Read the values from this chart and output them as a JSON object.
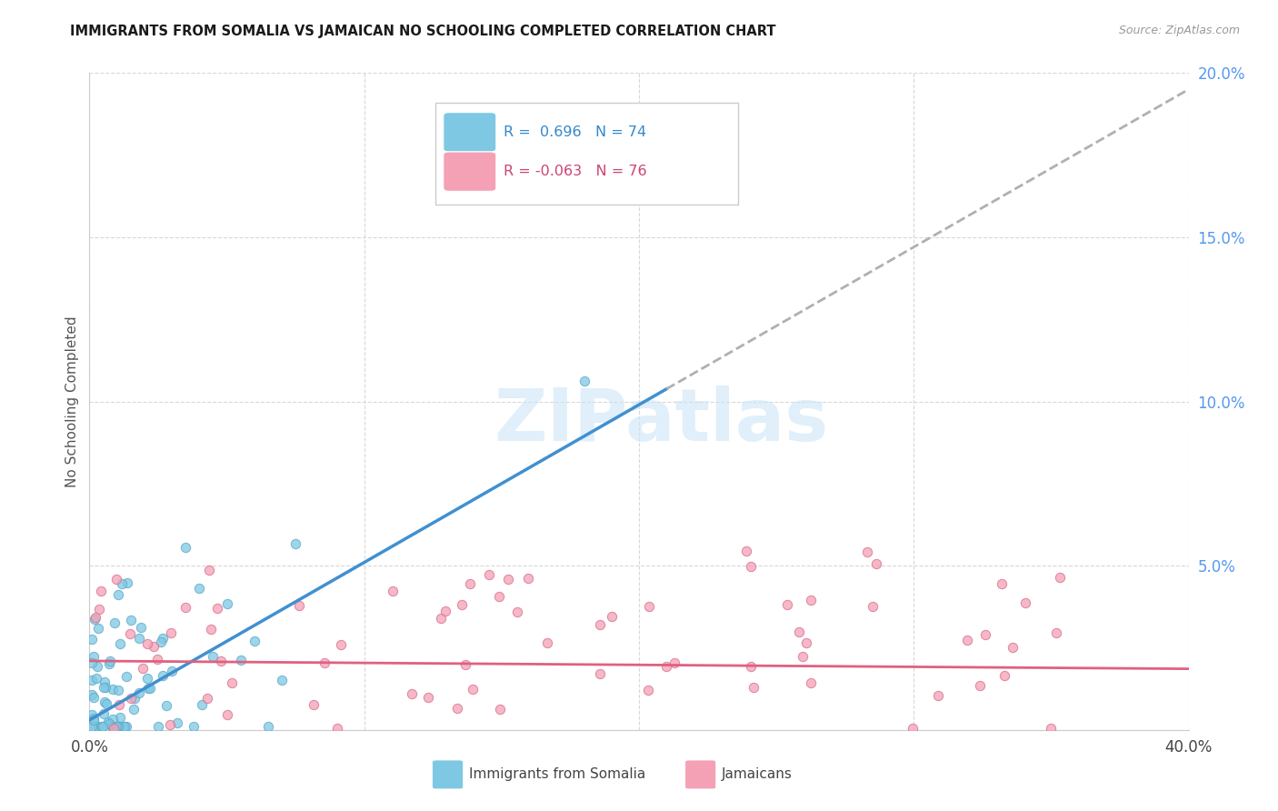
{
  "title": "IMMIGRANTS FROM SOMALIA VS JAMAICAN NO SCHOOLING COMPLETED CORRELATION CHART",
  "source": "Source: ZipAtlas.com",
  "ylabel": "No Schooling Completed",
  "xlim": [
    0.0,
    0.4
  ],
  "ylim": [
    0.0,
    0.2
  ],
  "somalia_R": 0.696,
  "somalia_N": 74,
  "jamaican_R": -0.063,
  "jamaican_N": 76,
  "somalia_color": "#7ec8e3",
  "somalia_color_edge": "#5aaac8",
  "jamaican_color": "#f4a0b5",
  "jamaican_color_edge": "#d97090",
  "somalia_line_color": "#4090d0",
  "jamaican_line_color": "#e06080",
  "trendline_dashed_color": "#b0b0b0",
  "watermark": "ZIPatlas",
  "background_color": "#ffffff",
  "grid_color": "#d8d8d8",
  "ytick_color": "#5599ee",
  "legend_edge_color": "#cccccc",
  "somalia_line_intercept": 0.003,
  "somalia_line_slope": 0.48,
  "somalia_line_solid_end": 0.21,
  "jamaican_line_intercept": 0.021,
  "jamaican_line_slope": -0.006
}
